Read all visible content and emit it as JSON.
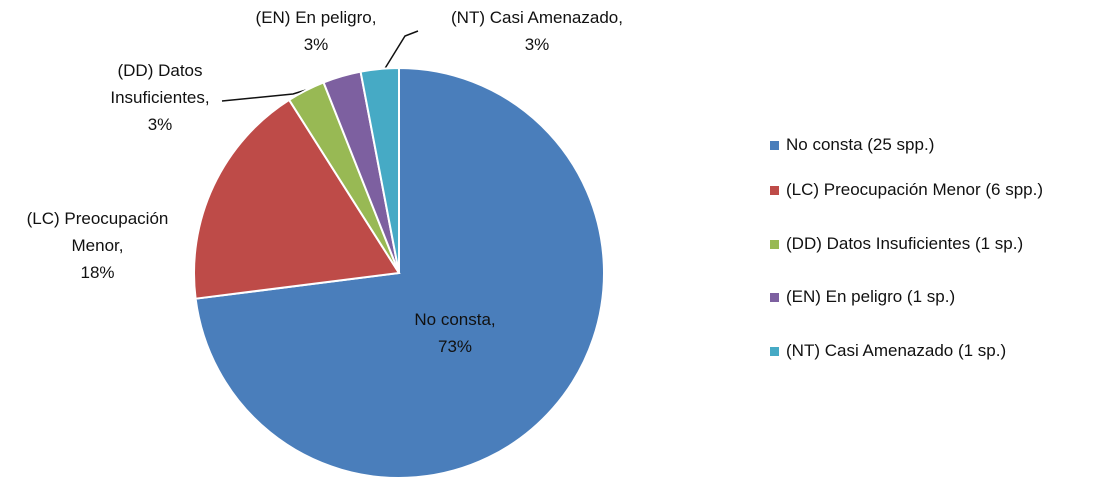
{
  "chart_data": {
    "type": "pie",
    "categories": [
      "No consta (25 spp.)",
      "(LC) Preocupación Menor (6 spp.)",
      "(DD) Datos Insuficientes (1 sp.)",
      "(EN) En peligro (1 sp.)",
      "(NT) Casi Amenazado (1 sp.)"
    ],
    "slice_labels": [
      "No consta,",
      "(LC) Preocupación Menor,",
      "(DD) Datos Insuficientes,",
      "(EN) En peligro,",
      "(NT) Casi Amenazado,"
    ],
    "values": [
      73,
      18,
      3,
      3,
      3
    ],
    "value_labels": [
      "73%",
      "18%",
      "3%",
      "3%",
      "3%"
    ],
    "colors": [
      "#4a7ebb",
      "#be4b48",
      "#98b954",
      "#7d60a0",
      "#46aac5"
    ],
    "legend": "right"
  }
}
